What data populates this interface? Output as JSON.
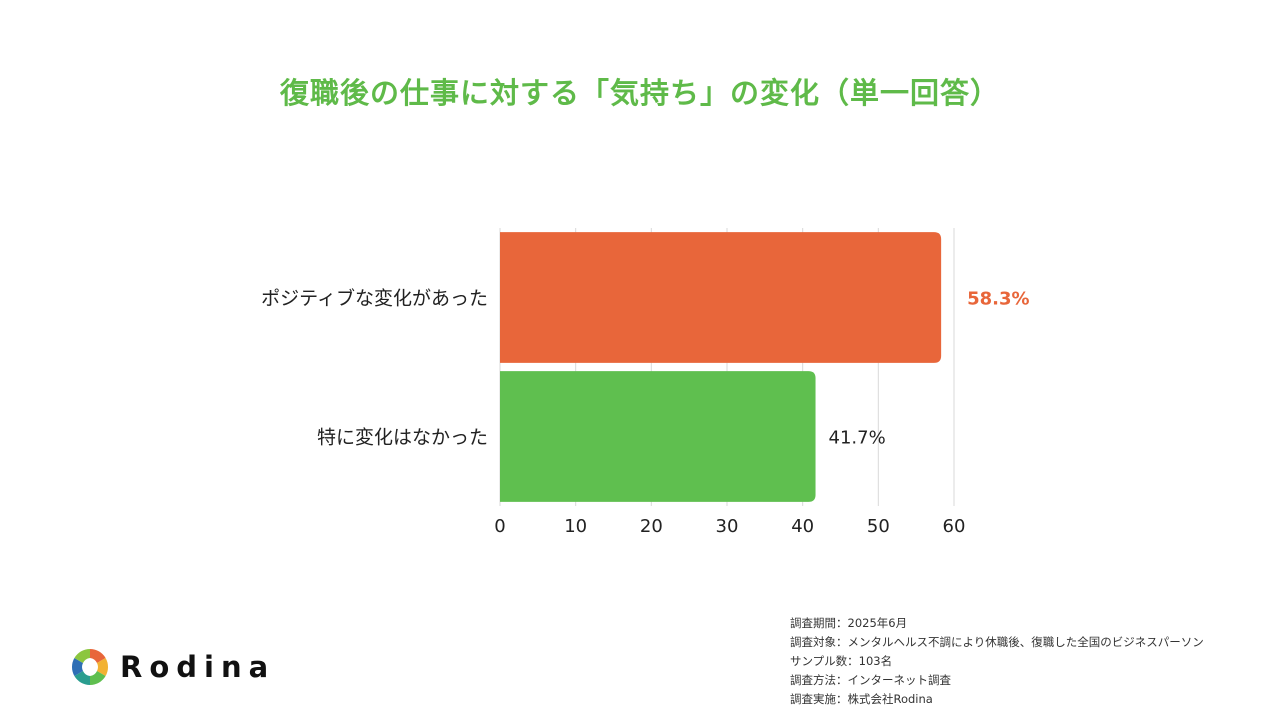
{
  "title": "復職後の仕事に対する「気持ち」の変化（単一回答）",
  "chart_data": {
    "type": "bar",
    "orientation": "horizontal",
    "categories": [
      "ポジティブな変化があった",
      "特に変化はなかった"
    ],
    "values": [
      58.3,
      41.7
    ],
    "value_labels": [
      "58.3%",
      "41.7%"
    ],
    "colors": [
      "#e8663a",
      "#5fbf4f"
    ],
    "highlight_index": 0,
    "xlim": [
      0,
      60
    ],
    "x_ticks": [
      0,
      10,
      20,
      30,
      40,
      50,
      60
    ],
    "x_tick_labels": [
      "0",
      "10",
      "20",
      "30",
      "40",
      "50",
      "60"
    ],
    "grid": true
  },
  "notes": [
    "調査期間：2025年6月",
    "調査対象：メンタルヘルス不調により休職後、復職した全国のビジネスパーソン",
    "サンプル数：103名",
    "調査方法：インターネット調査",
    "調査実施：株式会社Rodina"
  ],
  "logo": {
    "text": "Rodina",
    "icon": "aperture-logo-icon"
  }
}
